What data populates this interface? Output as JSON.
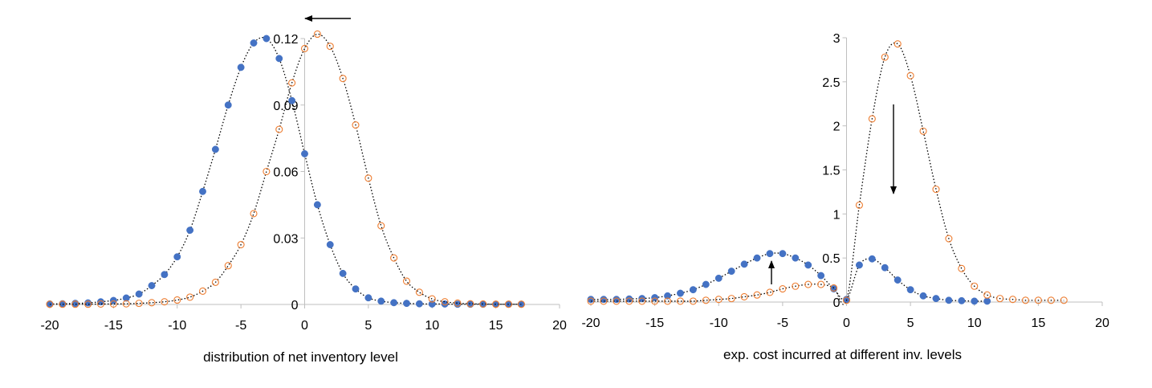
{
  "chart_data": [
    {
      "type": "scatter",
      "title": "",
      "xlabel": "distribution of net inventory level",
      "ylabel": "",
      "xlim": [
        -20,
        20
      ],
      "ylim": [
        0,
        0.12
      ],
      "x_ticks": [
        "-20",
        "-15",
        "-10",
        "-5",
        "0",
        "5",
        "10",
        "15",
        "20"
      ],
      "y_ticks": [
        "0",
        "0.03",
        "0.06",
        "0.09",
        "0.12"
      ],
      "grid": false,
      "trendline": "dotted",
      "annotation_arrow": "left",
      "series": [
        {
          "marker": "filled-circle",
          "color": "#4472C4",
          "x": [
            -20,
            -19,
            -18,
            -17,
            -16,
            -15,
            -14,
            -13,
            -12,
            -11,
            -10,
            -9,
            -8,
            -7,
            -6,
            -5,
            -4,
            -3,
            -2,
            -1,
            0,
            1,
            2,
            3,
            4,
            5,
            6,
            7,
            8,
            9,
            10,
            11,
            12,
            13,
            14,
            15,
            16,
            17
          ],
          "y": [
            0.0002,
            0.0003,
            0.0005,
            0.0007,
            0.0012,
            0.0018,
            0.0029,
            0.0047,
            0.0085,
            0.0135,
            0.0215,
            0.0335,
            0.051,
            0.07,
            0.09,
            0.107,
            0.118,
            0.12,
            0.111,
            0.092,
            0.068,
            0.045,
            0.027,
            0.014,
            0.007,
            0.003,
            0.0015,
            0.0008,
            0.0005,
            0.0003,
            0.0002,
            0.0002,
            0.0001,
            0.0001,
            0.0001,
            0.0001,
            0.0001,
            0.0001
          ]
        },
        {
          "marker": "open-circle",
          "color": "#ED7D31",
          "x": [
            -20,
            -19,
            -18,
            -17,
            -16,
            -15,
            -14,
            -13,
            -12,
            -11,
            -10,
            -9,
            -8,
            -7,
            -6,
            -5,
            -4,
            -3,
            -2,
            -1,
            0,
            1,
            2,
            3,
            4,
            5,
            6,
            7,
            8,
            9,
            10,
            11,
            12,
            13,
            14,
            15,
            16,
            17
          ],
          "y": [
            0.0001,
            0.0001,
            0.0001,
            0.0001,
            0.0002,
            0.0002,
            0.0003,
            0.0005,
            0.0008,
            0.0012,
            0.002,
            0.0033,
            0.006,
            0.01,
            0.0175,
            0.027,
            0.041,
            0.06,
            0.079,
            0.1,
            0.1155,
            0.122,
            0.1165,
            0.102,
            0.081,
            0.057,
            0.0355,
            0.021,
            0.0105,
            0.0055,
            0.0025,
            0.0012,
            0.0006,
            0.0003,
            0.0002,
            0.0001,
            0.0001,
            0.0001
          ]
        }
      ]
    },
    {
      "type": "scatter",
      "title": "",
      "xlabel": "exp. cost incurred at different inv. levels",
      "ylabel": "",
      "xlim": [
        -20,
        20
      ],
      "ylim": [
        0,
        3
      ],
      "x_ticks": [
        "-20",
        "-15",
        "-10",
        "-5",
        "0",
        "5",
        "10",
        "15",
        "20"
      ],
      "y_ticks": [
        "0",
        "0.5",
        "1",
        "1.5",
        "2",
        "2.5",
        "3"
      ],
      "grid": false,
      "trendline": "dotted",
      "annotation_arrows": [
        "up",
        "down"
      ],
      "series": [
        {
          "marker": "filled-circle",
          "color": "#4472C4",
          "x": [
            -20,
            -19,
            -18,
            -17,
            -16,
            -15,
            -14,
            -13,
            -12,
            -11,
            -10,
            -9,
            -8,
            -7,
            -6,
            -5,
            -4,
            -3,
            -2,
            -1,
            0,
            1,
            2,
            3,
            4,
            5,
            6,
            7,
            8,
            9,
            10,
            11
          ],
          "y": [
            0.03,
            0.03,
            0.03,
            0.035,
            0.04,
            0.05,
            0.07,
            0.1,
            0.14,
            0.2,
            0.27,
            0.35,
            0.43,
            0.5,
            0.55,
            0.55,
            0.5,
            0.42,
            0.3,
            0.15,
            0.03,
            0.42,
            0.49,
            0.39,
            0.25,
            0.14,
            0.07,
            0.04,
            0.02,
            0.015,
            0.01,
            0.01
          ]
        },
        {
          "marker": "open-circle",
          "color": "#ED7D31",
          "x": [
            -20,
            -19,
            -18,
            -17,
            -16,
            -15,
            -14,
            -13,
            -12,
            -11,
            -10,
            -9,
            -8,
            -7,
            -6,
            -5,
            -4,
            -3,
            -2,
            -1,
            0,
            1,
            2,
            3,
            4,
            5,
            6,
            7,
            8,
            9,
            10,
            11,
            12,
            13,
            14,
            15,
            16,
            17
          ],
          "y": [
            0.01,
            0.01,
            0.01,
            0.01,
            0.01,
            0.01,
            0.01,
            0.01,
            0.01,
            0.02,
            0.03,
            0.04,
            0.06,
            0.08,
            0.11,
            0.15,
            0.18,
            0.2,
            0.2,
            0.16,
            0.02,
            1.1,
            2.08,
            2.78,
            2.93,
            2.57,
            1.94,
            1.28,
            0.72,
            0.38,
            0.18,
            0.08,
            0.04,
            0.03,
            0.02,
            0.02,
            0.02,
            0.02
          ]
        }
      ]
    }
  ]
}
